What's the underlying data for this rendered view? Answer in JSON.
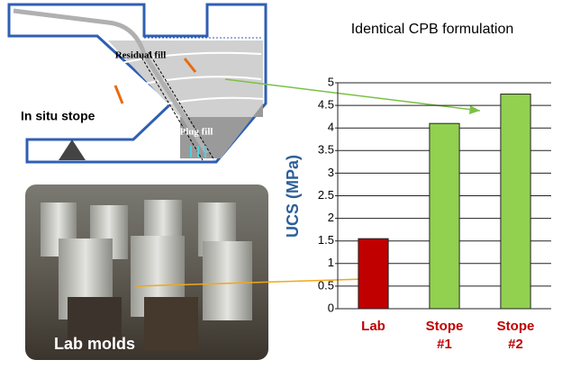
{
  "chart_data": {
    "type": "bar",
    "title": "Identical CPB formulation",
    "y_label": "UCS (MPa)",
    "categories": [
      "Lab",
      "Stope #1",
      "Stope #2"
    ],
    "values": [
      1.55,
      4.1,
      4.75
    ],
    "colors": [
      "#c00000",
      "#92d050",
      "#92d050"
    ],
    "category_color": "#c00000",
    "ylim": [
      0,
      5
    ],
    "yticks": [
      0,
      0.5,
      1,
      1.5,
      2,
      2.5,
      3,
      3.5,
      4,
      4.5,
      5
    ],
    "grid": true
  },
  "illustration": {
    "stope_label": "In situ stope",
    "residual_label": "Residual fill",
    "plug_label": "Plug fill",
    "molds_label": "Lab molds"
  }
}
